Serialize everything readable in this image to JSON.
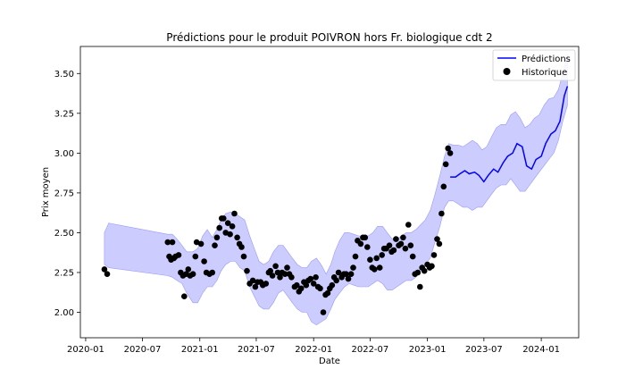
{
  "chart_data": {
    "type": "line",
    "title": "Prédictions pour le produit POIVRON hors Fr. biologique cdt 2",
    "xlabel": "Date",
    "ylabel": "Prix moyen",
    "xlim": [
      "2019-12-15",
      "2024-04-30"
    ],
    "ylim": [
      1.84,
      3.67
    ],
    "x_ticks": [
      "2020-01",
      "2020-07",
      "2021-01",
      "2021-07",
      "2022-01",
      "2022-07",
      "2023-01",
      "2023-07",
      "2024-01"
    ],
    "y_ticks": [
      "2.00",
      "2.25",
      "2.50",
      "2.75",
      "3.00",
      "3.25",
      "3.50"
    ],
    "grid": false,
    "legend_position": "top-right",
    "colors": {
      "prediction_line": "#0000ff",
      "confidence_band": "#9999ff",
      "history_points": "#000000"
    },
    "legend": [
      {
        "label": "Prédictions",
        "marker": "line",
        "color": "#0000ff"
      },
      {
        "label": "Historique",
        "marker": "dot",
        "color": "#000000"
      }
    ],
    "band": {
      "x": [
        "2020-03-01",
        "2020-03-15",
        "2020-09-20",
        "2020-10-05",
        "2020-10-20",
        "2020-11-05",
        "2020-11-20",
        "2020-12-10",
        "2020-12-25",
        "2021-01-10",
        "2021-01-25",
        "2021-02-10",
        "2021-02-25",
        "2021-03-10",
        "2021-03-25",
        "2021-04-10",
        "2021-04-25",
        "2021-05-10",
        "2021-05-25",
        "2021-06-10",
        "2021-06-25",
        "2021-07-10",
        "2021-07-25",
        "2021-08-10",
        "2021-08-25",
        "2021-09-10",
        "2021-09-25",
        "2021-10-10",
        "2021-10-25",
        "2021-11-10",
        "2021-11-25",
        "2021-12-10",
        "2021-12-25",
        "2022-01-10",
        "2022-01-25",
        "2022-02-10",
        "2022-02-25",
        "2022-03-10",
        "2022-03-25",
        "2022-04-10",
        "2022-04-25",
        "2022-05-10",
        "2022-05-25",
        "2022-06-10",
        "2022-06-25",
        "2022-07-10",
        "2022-07-25",
        "2022-08-10",
        "2022-08-25",
        "2022-09-10",
        "2022-09-25",
        "2022-10-10",
        "2022-10-25",
        "2022-11-10",
        "2022-11-25",
        "2022-12-10",
        "2022-12-25",
        "2023-01-10",
        "2023-01-25",
        "2023-02-10",
        "2023-02-25",
        "2023-03-10",
        "2023-03-25",
        "2023-04-10",
        "2023-04-25",
        "2023-05-10",
        "2023-05-25",
        "2023-06-10",
        "2023-06-25",
        "2023-07-10",
        "2023-07-25",
        "2023-08-10",
        "2023-08-25",
        "2023-09-10",
        "2023-09-25",
        "2023-10-10",
        "2023-10-25",
        "2023-11-10",
        "2023-11-25",
        "2023-12-10",
        "2023-12-25",
        "2024-01-10",
        "2024-01-25",
        "2024-02-10",
        "2024-02-25",
        "2024-03-10",
        "2024-03-25"
      ],
      "upper": [
        2.5,
        2.56,
        2.49,
        2.49,
        2.46,
        2.42,
        2.38,
        2.38,
        2.4,
        2.48,
        2.52,
        2.47,
        2.52,
        2.58,
        2.62,
        2.63,
        2.62,
        2.6,
        2.58,
        2.48,
        2.4,
        2.32,
        2.3,
        2.32,
        2.38,
        2.42,
        2.42,
        2.38,
        2.34,
        2.3,
        2.28,
        2.28,
        2.32,
        2.34,
        2.3,
        2.24,
        2.3,
        2.38,
        2.45,
        2.5,
        2.5,
        2.49,
        2.48,
        2.48,
        2.48,
        2.5,
        2.54,
        2.54,
        2.5,
        2.46,
        2.46,
        2.48,
        2.5,
        2.5,
        2.52,
        2.55,
        2.58,
        2.64,
        2.74,
        2.86,
        2.98,
        3.06,
        3.05,
        3.05,
        3.04,
        3.06,
        3.08,
        3.06,
        3.02,
        3.04,
        3.1,
        3.16,
        3.18,
        3.18,
        3.24,
        3.26,
        3.22,
        3.16,
        3.18,
        3.22,
        3.24,
        3.3,
        3.34,
        3.35,
        3.4,
        3.5,
        3.62
      ],
      "lower": [
        2.3,
        2.28,
        2.23,
        2.22,
        2.2,
        2.18,
        2.12,
        2.06,
        2.06,
        2.12,
        2.16,
        2.16,
        2.2,
        2.26,
        2.3,
        2.32,
        2.32,
        2.28,
        2.26,
        2.16,
        2.1,
        2.04,
        2.02,
        2.02,
        2.06,
        2.12,
        2.14,
        2.1,
        2.06,
        2.02,
        2.0,
        2.0,
        1.94,
        1.92,
        1.94,
        1.96,
        2.02,
        2.08,
        2.12,
        2.16,
        2.18,
        2.17,
        2.16,
        2.16,
        2.16,
        2.18,
        2.2,
        2.18,
        2.14,
        2.14,
        2.16,
        2.18,
        2.2,
        2.2,
        2.22,
        2.26,
        2.3,
        2.34,
        2.44,
        2.54,
        2.66,
        2.7,
        2.7,
        2.68,
        2.66,
        2.66,
        2.64,
        2.66,
        2.66,
        2.7,
        2.74,
        2.78,
        2.8,
        2.8,
        2.84,
        2.8,
        2.76,
        2.76,
        2.8,
        2.84,
        2.88,
        2.92,
        2.96,
        3.0,
        3.08,
        3.2,
        3.3
      ]
    },
    "prediction": {
      "x": [
        "2023-03-15",
        "2023-04-01",
        "2023-04-15",
        "2023-05-01",
        "2023-05-15",
        "2023-06-01",
        "2023-06-15",
        "2023-07-01",
        "2023-07-15",
        "2023-08-01",
        "2023-08-15",
        "2023-09-01",
        "2023-09-15",
        "2023-10-01",
        "2023-10-15",
        "2023-11-01",
        "2023-11-15",
        "2023-12-01",
        "2023-12-15",
        "2024-01-01",
        "2024-01-15",
        "2024-02-01",
        "2024-02-15",
        "2024-03-01",
        "2024-03-15",
        "2024-03-25"
      ],
      "values": [
        2.85,
        2.85,
        2.87,
        2.89,
        2.87,
        2.88,
        2.86,
        2.82,
        2.86,
        2.9,
        2.88,
        2.94,
        2.98,
        3.0,
        3.06,
        3.04,
        2.92,
        2.9,
        2.96,
        2.98,
        3.06,
        3.12,
        3.14,
        3.2,
        3.36,
        3.42
      ]
    },
    "history": {
      "x": [
        "2020-03-01",
        "2020-03-10",
        "2020-09-20",
        "2020-09-25",
        "2020-10-01",
        "2020-10-05",
        "2020-10-10",
        "2020-10-15",
        "2020-10-25",
        "2020-11-01",
        "2020-11-08",
        "2020-11-12",
        "2020-11-18",
        "2020-11-25",
        "2020-12-01",
        "2020-12-10",
        "2020-12-18",
        "2020-12-22",
        "2021-01-05",
        "2021-01-15",
        "2021-01-22",
        "2021-02-01",
        "2021-02-10",
        "2021-02-18",
        "2021-02-25",
        "2021-03-05",
        "2021-03-12",
        "2021-03-18",
        "2021-03-25",
        "2021-04-01",
        "2021-04-08",
        "2021-04-15",
        "2021-04-22",
        "2021-05-01",
        "2021-05-08",
        "2021-05-15",
        "2021-05-22",
        "2021-06-01",
        "2021-06-10",
        "2021-06-20",
        "2021-06-28",
        "2021-07-05",
        "2021-07-15",
        "2021-07-22",
        "2021-08-01",
        "2021-08-10",
        "2021-08-15",
        "2021-08-22",
        "2021-09-01",
        "2021-09-08",
        "2021-09-15",
        "2021-09-22",
        "2021-10-01",
        "2021-10-08",
        "2021-10-15",
        "2021-10-22",
        "2021-11-01",
        "2021-11-08",
        "2021-11-15",
        "2021-11-22",
        "2021-12-01",
        "2021-12-08",
        "2021-12-15",
        "2021-12-22",
        "2022-01-01",
        "2022-01-08",
        "2022-01-15",
        "2022-01-22",
        "2022-02-01",
        "2022-02-08",
        "2022-02-15",
        "2022-02-22",
        "2022-03-01",
        "2022-03-08",
        "2022-03-15",
        "2022-03-22",
        "2022-04-01",
        "2022-04-08",
        "2022-04-15",
        "2022-04-22",
        "2022-05-01",
        "2022-05-08",
        "2022-05-15",
        "2022-05-22",
        "2022-06-01",
        "2022-06-08",
        "2022-06-15",
        "2022-06-22",
        "2022-07-01",
        "2022-07-08",
        "2022-07-15",
        "2022-07-22",
        "2022-08-01",
        "2022-08-08",
        "2022-08-15",
        "2022-08-22",
        "2022-09-01",
        "2022-09-08",
        "2022-09-15",
        "2022-09-22",
        "2022-10-01",
        "2022-10-08",
        "2022-10-15",
        "2022-10-22",
        "2022-11-01",
        "2022-11-08",
        "2022-11-15",
        "2022-11-22",
        "2022-12-01",
        "2022-12-08",
        "2022-12-15",
        "2022-12-22",
        "2023-01-01",
        "2023-01-08",
        "2023-01-15",
        "2023-01-22",
        "2023-02-01",
        "2023-02-08",
        "2023-02-15",
        "2023-02-22",
        "2023-03-01",
        "2023-03-08",
        "2023-03-15"
      ],
      "values": [
        2.27,
        2.24,
        2.44,
        2.35,
        2.33,
        2.44,
        2.34,
        2.35,
        2.36,
        2.25,
        2.23,
        2.1,
        2.24,
        2.27,
        2.23,
        2.24,
        2.35,
        2.44,
        2.43,
        2.32,
        2.25,
        2.24,
        2.25,
        2.42,
        2.47,
        2.53,
        2.59,
        2.59,
        2.5,
        2.56,
        2.49,
        2.54,
        2.62,
        2.47,
        2.43,
        2.41,
        2.35,
        2.26,
        2.18,
        2.2,
        2.16,
        2.19,
        2.19,
        2.17,
        2.18,
        2.25,
        2.26,
        2.23,
        2.29,
        2.25,
        2.22,
        2.25,
        2.24,
        2.28,
        2.24,
        2.22,
        2.16,
        2.17,
        2.13,
        2.15,
        2.19,
        2.17,
        2.2,
        2.21,
        2.18,
        2.22,
        2.16,
        2.15,
        2.0,
        2.11,
        2.12,
        2.15,
        2.17,
        2.22,
        2.2,
        2.25,
        2.22,
        2.24,
        2.24,
        2.21,
        2.24,
        2.28,
        2.35,
        2.45,
        2.43,
        2.47,
        2.47,
        2.41,
        2.33,
        2.28,
        2.27,
        2.34,
        2.28,
        2.36,
        2.4,
        2.4,
        2.42,
        2.38,
        2.39,
        2.46,
        2.42,
        2.43,
        2.47,
        2.4,
        2.55,
        2.42,
        2.35,
        2.24,
        2.25,
        2.16,
        2.28,
        2.26,
        2.3,
        2.28,
        2.29,
        2.36,
        2.46,
        2.43,
        2.62,
        2.79,
        2.93,
        3.03,
        3.0
      ]
    }
  }
}
